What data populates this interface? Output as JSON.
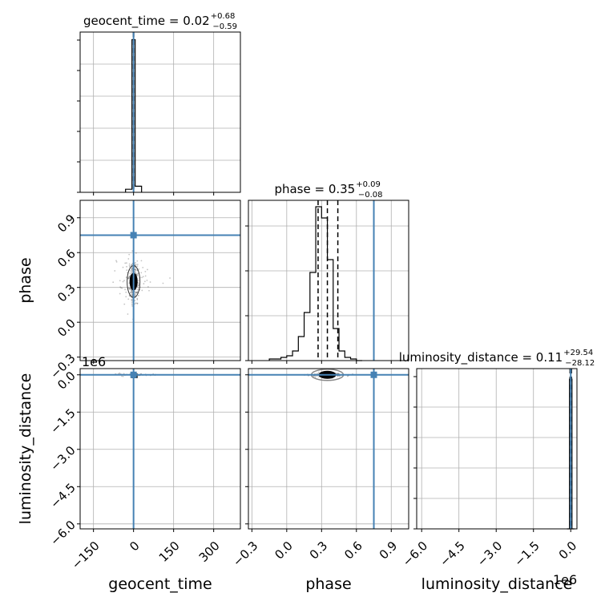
{
  "chart_data": {
    "type": "scatter",
    "subtype": "corner",
    "parameters": [
      "geocent_time",
      "phase",
      "luminosity_distance"
    ],
    "axis_labels": [
      "geocent_time",
      "phase",
      "luminosity_distance"
    ],
    "titles": [
      {
        "param": "geocent_time",
        "prefix": "geocent_time = ",
        "median": "0.02",
        "plus": "+0.68",
        "minus": "−0.59"
      },
      {
        "param": "phase",
        "prefix": "phase = ",
        "median": "0.35",
        "plus": "+0.09",
        "minus": "−0.08"
      },
      {
        "param": "luminosity_distance",
        "prefix": "luminosity_distance = ",
        "median": "0.11",
        "plus": "+29.54",
        "minus": "−28.12"
      }
    ],
    "ranges": {
      "geocent_time": [
        -200,
        400
      ],
      "phase": [
        -0.33,
        1.05
      ],
      "luminosity_distance": [
        -6200000,
        250000
      ]
    },
    "ticks": {
      "geocent_time": {
        "values": [
          -150,
          0,
          150,
          300
        ],
        "labels": [
          "−150",
          "0",
          "150",
          "300"
        ]
      },
      "phase": {
        "values": [
          -0.3,
          0.0,
          0.3,
          0.6,
          0.9
        ],
        "labels": [
          "−0.3",
          "0.0",
          "0.3",
          "0.6",
          "0.9"
        ]
      },
      "luminosity_distance_left": {
        "values": [
          -6000000,
          -4500000,
          -3000000,
          -1500000,
          0
        ],
        "labels": [
          "−6.0",
          "−4.5",
          "−3.0",
          "−1.5",
          "0.0"
        ]
      },
      "luminosity_distance_bottom": {
        "values": [
          -6000000,
          -4500000,
          -3000000,
          -1500000,
          0
        ],
        "labels": [
          "−6.0",
          "−4.5",
          "−3.0",
          "−1.5",
          "0.0"
        ]
      }
    },
    "offset_labels": {
      "left": "1e6",
      "bottom": "1e6"
    },
    "truths": {
      "geocent_time": 0,
      "phase": 0.75,
      "luminosity_distance": 0
    },
    "colors": {
      "truth": "#4682b4",
      "hist": "#000000",
      "grid": "#b0b0b0",
      "points": "#555555"
    },
    "quantile_lines": {
      "geocent_time": [
        -0.57,
        0.02,
        0.7
      ],
      "phase": [
        0.27,
        0.35,
        0.44
      ],
      "luminosity_distance": [
        -28.01,
        0.11,
        29.65
      ]
    },
    "hist_geocent_time": {
      "bin_edges": [
        -30,
        -6,
        6,
        30
      ],
      "counts": [
        0.02,
        1.0,
        0.04
      ],
      "note_range": [
        -200,
        400
      ]
    },
    "hist_phase": {
      "bin_edges": [
        -0.15,
        -0.1,
        -0.05,
        0.0,
        0.05,
        0.1,
        0.15,
        0.2,
        0.25,
        0.3,
        0.35,
        0.4,
        0.45,
        0.5,
        0.55,
        0.6,
        0.65
      ],
      "counts": [
        0.01,
        0.01,
        0.02,
        0.03,
        0.06,
        0.15,
        0.3,
        0.55,
        0.96,
        0.89,
        0.63,
        0.2,
        0.06,
        0.02,
        0.01,
        0.0
      ]
    },
    "hist_luminosity_distance": {
      "bin_edges": [
        -150000,
        -50000,
        50000,
        150000
      ],
      "counts": [
        0.0,
        1.0,
        0.0
      ]
    },
    "grid": true
  }
}
